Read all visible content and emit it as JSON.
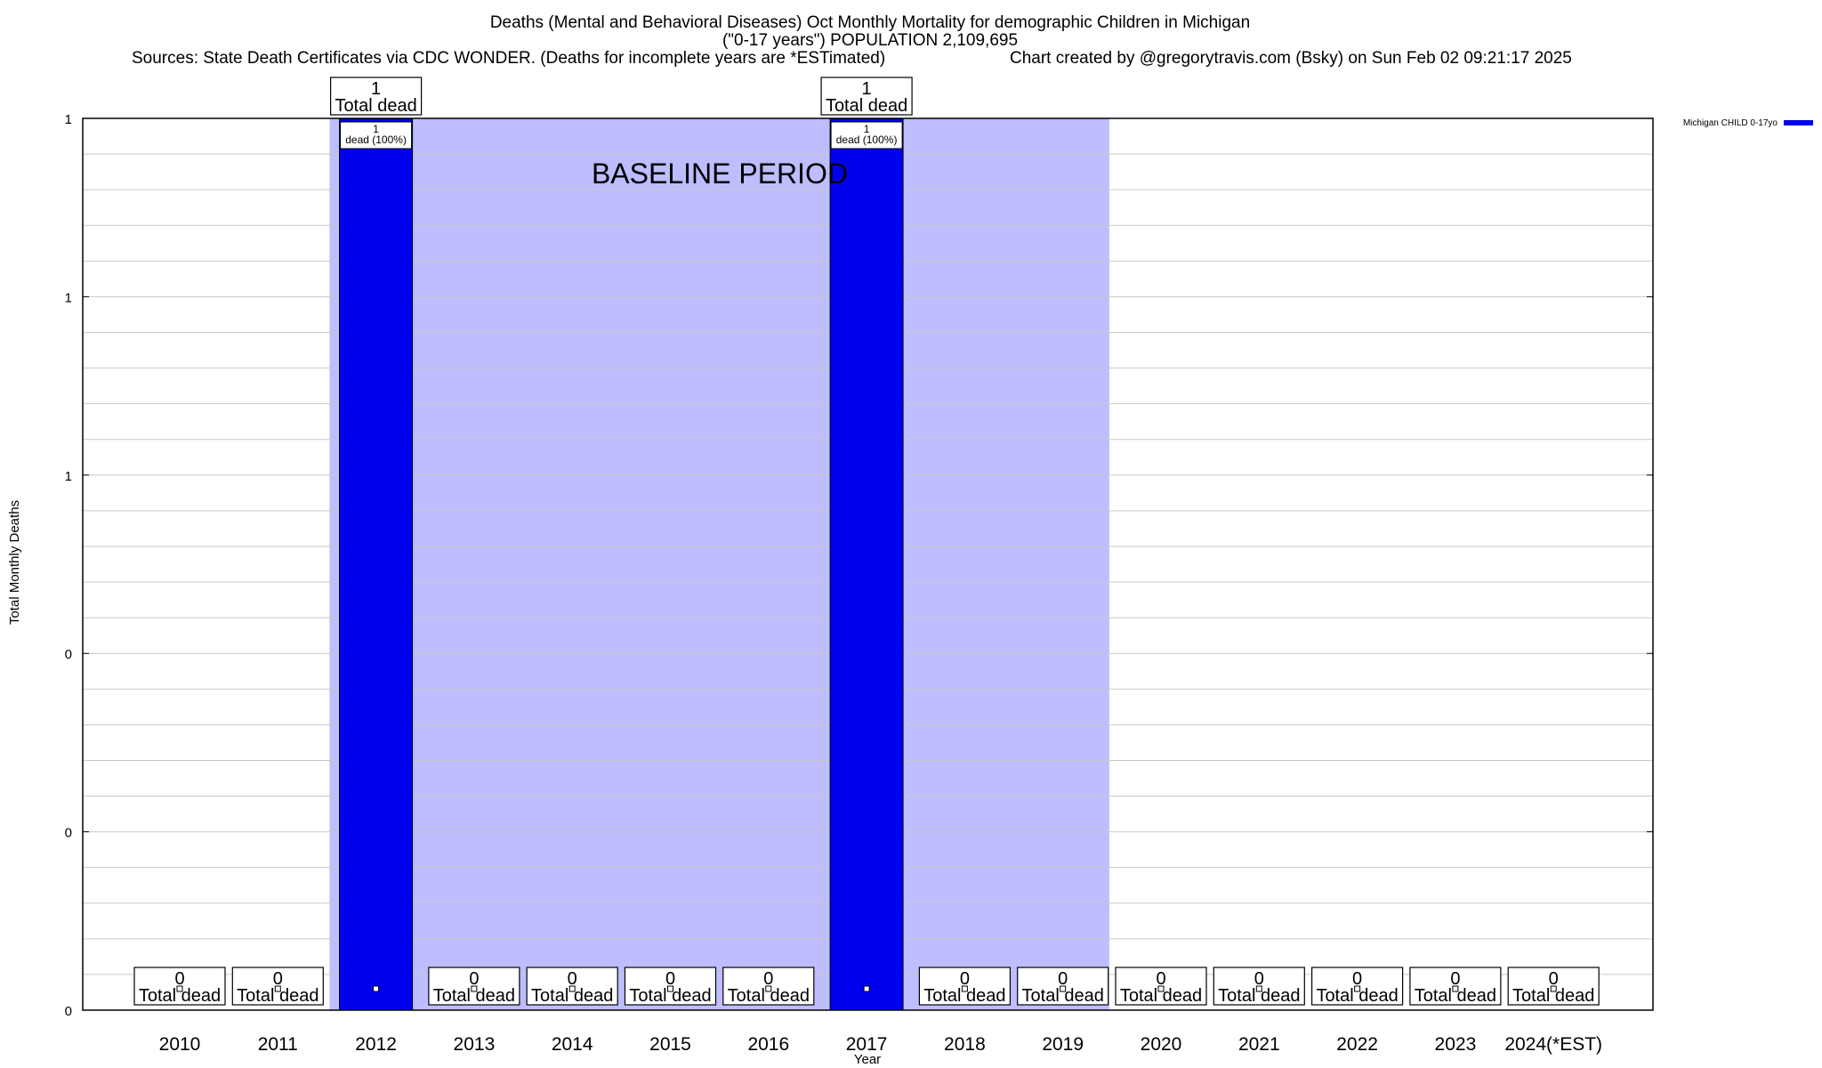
{
  "chart_data": {
    "type": "bar",
    "title_lines": [
      "Deaths (Mental and Behavioral Diseases) Oct Monthly Mortality for demographic Children in Michigan",
      "(\"0-17 years\") POPULATION 2,109,695"
    ],
    "sources": "Sources: State Death Certificates via CDC WONDER. (Deaths for incomplete years are *ESTimated)",
    "credit": "Chart created by @gregorytravis.com (Bsky) on Sun Feb 02 09:21:17 2025",
    "xlabel": "Year",
    "ylabel": "Total Monthly Deaths",
    "ylim": [
      0,
      1
    ],
    "y_tick_labels": [
      "0",
      "0",
      "0",
      "1",
      "1",
      "1"
    ],
    "grid": true,
    "legend_position": "top-right",
    "baseline_label": "BASELINE PERIOD",
    "baseline_range": [
      "2012",
      "2019"
    ],
    "categories": [
      "2010",
      "2011",
      "2012",
      "2013",
      "2014",
      "2015",
      "2016",
      "2017",
      "2018",
      "2019",
      "2020",
      "2021",
      "2022",
      "2023",
      "2024(*EST)"
    ],
    "series": [
      {
        "name": "Michigan CHILD 0-17yo",
        "color": "#0000ee",
        "values": [
          0,
          0,
          1,
          0,
          0,
          0,
          0,
          1,
          0,
          0,
          0,
          0,
          0,
          0,
          0
        ]
      }
    ],
    "total_labels": {
      "line1": [
        "0",
        "0",
        "1",
        "0",
        "0",
        "0",
        "0",
        "1",
        "0",
        "0",
        "0",
        "0",
        "0",
        "0",
        "0"
      ],
      "line2": "Total dead"
    },
    "bar_labels": [
      "",
      "",
      "1\ndead (100%)",
      "",
      "",
      "",
      "",
      "1\ndead (100%)",
      "",
      "",
      "",
      "",
      "",
      "",
      ""
    ],
    "colors": {
      "baseline": "#bdbdff",
      "bar": "#0000ee",
      "grid": "#c8c8c8"
    }
  }
}
